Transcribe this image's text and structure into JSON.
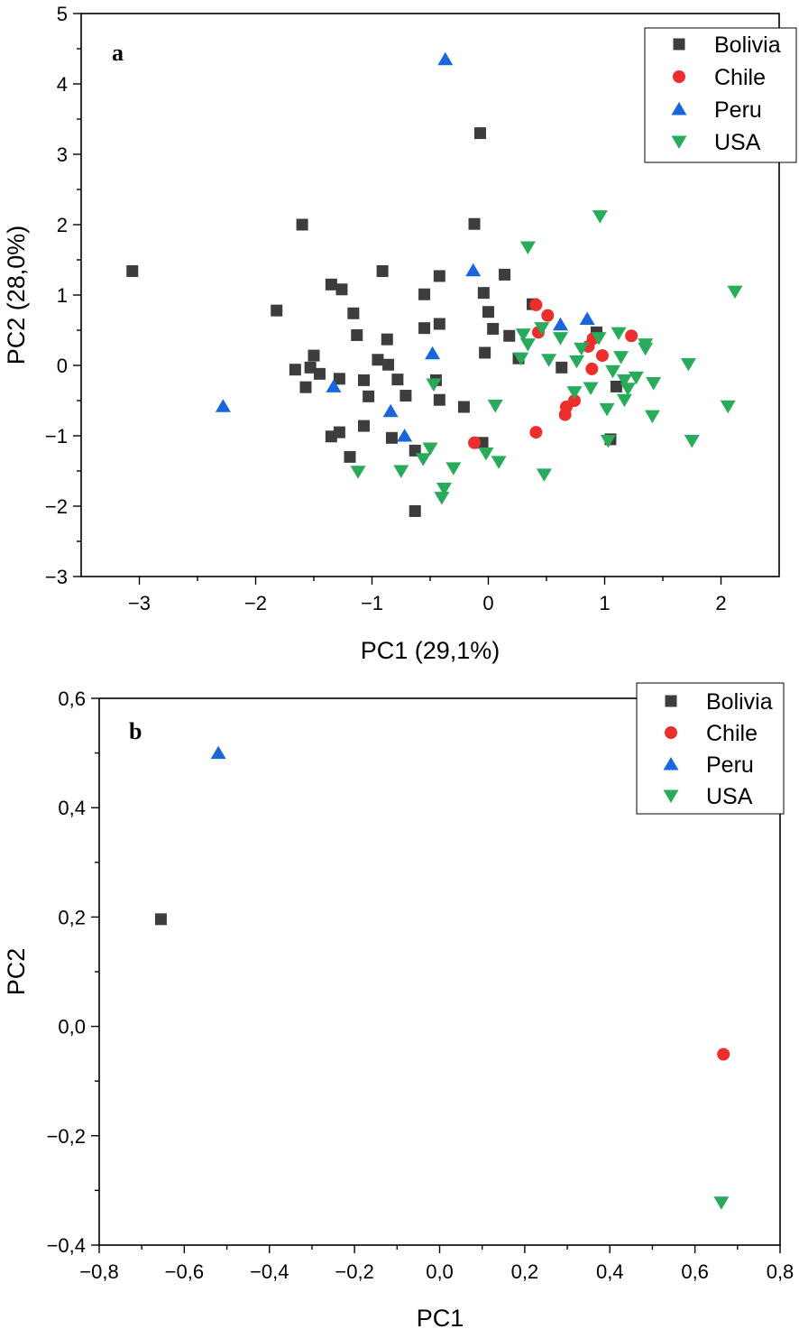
{
  "chart_data": [
    {
      "type": "scatter",
      "panel": "a",
      "xlabel": "PC1 (29,1%)",
      "ylabel": "PC2 (28,0%)",
      "xlim": [
        -3.5,
        2.5
      ],
      "ylim": [
        -3,
        5
      ],
      "xticks": [
        -3,
        -2,
        -1,
        0,
        1,
        2
      ],
      "xtick_labels": [
        "−3",
        "−2",
        "−1",
        "0",
        "1",
        "2"
      ],
      "yticks": [
        -3,
        -2,
        -1,
        0,
        1,
        2,
        3,
        4,
        5
      ],
      "ytick_labels": [
        "−3",
        "−2",
        "−1",
        "0",
        "1",
        "2",
        "3",
        "4",
        "5"
      ],
      "legend_position": "top-right",
      "series": [
        {
          "name": "Bolivia",
          "marker": "square",
          "color": "#3d3d3d",
          "points": [
            [
              -3.06,
              1.34
            ],
            [
              -1.6,
              2.0
            ],
            [
              -1.82,
              0.78
            ],
            [
              -1.35,
              1.15
            ],
            [
              -1.26,
              1.08
            ],
            [
              -1.16,
              0.74
            ],
            [
              -1.13,
              0.43
            ],
            [
              -1.5,
              0.14
            ],
            [
              -1.45,
              -0.12
            ],
            [
              -1.53,
              -0.03
            ],
            [
              -1.66,
              -0.06
            ],
            [
              -1.57,
              -0.31
            ],
            [
              -1.28,
              -0.19
            ],
            [
              -1.07,
              -0.21
            ],
            [
              -1.03,
              -0.44
            ],
            [
              -0.91,
              1.34
            ],
            [
              -0.95,
              0.08
            ],
            [
              -0.87,
              0.37
            ],
            [
              -0.86,
              0.01
            ],
            [
              -0.78,
              -0.2
            ],
            [
              -0.71,
              -0.43
            ],
            [
              -1.35,
              -1.01
            ],
            [
              -1.28,
              -0.95
            ],
            [
              -1.07,
              -0.86
            ],
            [
              -0.83,
              -1.03
            ],
            [
              -1.19,
              -1.3
            ],
            [
              -0.63,
              -1.21
            ],
            [
              -0.63,
              -2.07
            ],
            [
              -0.55,
              1.01
            ],
            [
              -0.55,
              0.53
            ],
            [
              -0.42,
              1.27
            ],
            [
              -0.42,
              0.59
            ],
            [
              -0.45,
              -0.21
            ],
            [
              -0.42,
              -0.49
            ],
            [
              -0.21,
              -0.59
            ],
            [
              -0.12,
              2.01
            ],
            [
              -0.07,
              3.3
            ],
            [
              -0.04,
              1.03
            ],
            [
              -0.03,
              0.18
            ],
            [
              0.0,
              0.76
            ],
            [
              0.04,
              0.52
            ],
            [
              0.14,
              1.29
            ],
            [
              0.18,
              0.42
            ],
            [
              0.26,
              0.1
            ],
            [
              0.38,
              0.87
            ],
            [
              -0.05,
              -1.1
            ],
            [
              0.63,
              -0.03
            ],
            [
              0.93,
              0.47
            ],
            [
              1.1,
              -0.3
            ],
            [
              1.05,
              -1.05
            ]
          ]
        },
        {
          "name": "Chile",
          "marker": "circle",
          "color": "#ee2d2d",
          "points": [
            [
              0.41,
              0.86
            ],
            [
              0.51,
              0.71
            ],
            [
              0.43,
              0.47
            ],
            [
              0.9,
              0.38
            ],
            [
              0.86,
              0.27
            ],
            [
              0.98,
              0.14
            ],
            [
              0.89,
              -0.05
            ],
            [
              1.23,
              0.42
            ],
            [
              0.74,
              -0.5
            ],
            [
              0.67,
              -0.59
            ],
            [
              0.66,
              -0.7
            ],
            [
              0.41,
              -0.95
            ],
            [
              -0.12,
              -1.1
            ]
          ]
        },
        {
          "name": "Peru",
          "marker": "triangle-up",
          "color": "#1966dc",
          "points": [
            [
              -0.37,
              4.35
            ],
            [
              -2.28,
              -0.58
            ],
            [
              -1.33,
              -0.3
            ],
            [
              -0.48,
              0.17
            ],
            [
              -0.13,
              1.35
            ],
            [
              0.62,
              0.58
            ],
            [
              0.85,
              0.66
            ],
            [
              -0.84,
              -0.65
            ],
            [
              -0.72,
              -1.0
            ]
          ]
        },
        {
          "name": "USA",
          "marker": "triangle-down",
          "color": "#28ac5c",
          "points": [
            [
              2.12,
              1.05
            ],
            [
              0.96,
              2.12
            ],
            [
              0.34,
              1.68
            ],
            [
              0.3,
              0.44
            ],
            [
              0.46,
              0.53
            ],
            [
              0.62,
              0.39
            ],
            [
              0.8,
              0.24
            ],
            [
              0.95,
              0.39
            ],
            [
              1.12,
              0.46
            ],
            [
              1.14,
              0.12
            ],
            [
              1.35,
              0.24
            ],
            [
              1.35,
              0.3
            ],
            [
              0.28,
              0.1
            ],
            [
              0.34,
              0.3
            ],
            [
              0.52,
              0.08
            ],
            [
              0.76,
              0.06
            ],
            [
              0.88,
              -0.32
            ],
            [
              0.74,
              -0.38
            ],
            [
              1.07,
              -0.08
            ],
            [
              1.17,
              -0.21
            ],
            [
              1.27,
              -0.17
            ],
            [
              1.2,
              -0.33
            ],
            [
              1.42,
              -0.25
            ],
            [
              1.02,
              -0.62
            ],
            [
              1.17,
              -0.49
            ],
            [
              1.41,
              -0.72
            ],
            [
              1.72,
              0.02
            ],
            [
              2.06,
              -0.58
            ],
            [
              1.75,
              -1.07
            ],
            [
              1.03,
              -1.07
            ],
            [
              0.06,
              -0.57
            ],
            [
              0.48,
              -1.55
            ],
            [
              0.09,
              -1.37
            ],
            [
              -0.02,
              -1.25
            ],
            [
              -0.47,
              -0.27
            ],
            [
              -0.5,
              -1.18
            ],
            [
              -0.56,
              -1.33
            ],
            [
              -0.3,
              -1.46
            ],
            [
              -0.75,
              -1.5
            ],
            [
              -1.12,
              -1.51
            ],
            [
              -0.38,
              -1.75
            ],
            [
              -0.4,
              -1.88
            ]
          ]
        }
      ]
    },
    {
      "type": "scatter",
      "panel": "b",
      "xlabel": "PC1",
      "ylabel": "PC2",
      "xlim": [
        -0.8,
        0.8
      ],
      "ylim": [
        -0.4,
        0.6
      ],
      "xticks": [
        -0.8,
        -0.6,
        -0.4,
        -0.2,
        0.0,
        0.2,
        0.4,
        0.6,
        0.8
      ],
      "xtick_labels": [
        "−0,8",
        "−0,6",
        "−0,4",
        "−0,2",
        "0,0",
        "0,2",
        "0,4",
        "0,6",
        "0,8"
      ],
      "yticks": [
        -0.4,
        -0.2,
        0.0,
        0.2,
        0.4,
        0.6
      ],
      "ytick_labels": [
        "−0,4",
        "−0,2",
        "0,0",
        "0,2",
        "0,4",
        "0,6"
      ],
      "legend_position": "top-right",
      "series": [
        {
          "name": "Bolivia",
          "marker": "square",
          "color": "#3d3d3d",
          "points": [
            [
              -0.655,
              0.196
            ]
          ]
        },
        {
          "name": "Chile",
          "marker": "circle",
          "color": "#ee2d2d",
          "points": [
            [
              0.667,
              -0.051
            ]
          ]
        },
        {
          "name": "Peru",
          "marker": "triangle-up",
          "color": "#1966dc",
          "points": [
            [
              -0.52,
              0.5
            ]
          ]
        },
        {
          "name": "USA",
          "marker": "triangle-down",
          "color": "#28ac5c",
          "points": [
            [
              0.662,
              -0.322
            ]
          ]
        }
      ]
    }
  ]
}
